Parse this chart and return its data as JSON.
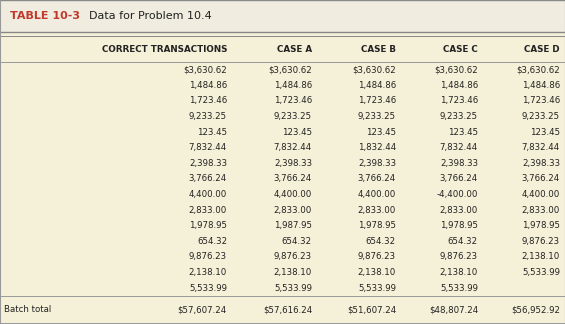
{
  "title_label": "TABLE 10-3",
  "title_text": "  Data for Problem 10.4",
  "table_bg": "#f5f0d8",
  "title_bg": "#f0ece0",
  "border_color": "#999999",
  "title_border_color": "#888888",
  "text_color": "#222222",
  "red_color": "#c0392b",
  "col_headers": [
    "CORRECT TRANSACTIONS",
    "CASE A",
    "CASE B",
    "CASE C",
    "CASE D"
  ],
  "rows": [
    [
      "$3,630.62",
      "$3,630.62",
      "$3,630.62",
      "$3,630.62",
      "$3,630.62"
    ],
    [
      "1,484.86",
      "1,484.86",
      "1,484.86",
      "1,484.86",
      "1,484.86"
    ],
    [
      "1,723.46",
      "1,723.46",
      "1,723.46",
      "1,723.46",
      "1,723.46"
    ],
    [
      "9,233.25",
      "9,233.25",
      "9,233.25",
      "9,233.25",
      "9,233.25"
    ],
    [
      "123.45",
      "123.45",
      "123.45",
      "123.45",
      "123.45"
    ],
    [
      "7,832.44",
      "7,832.44",
      "1,832.44",
      "7,832.44",
      "7,832.44"
    ],
    [
      "2,398.33",
      "2,398.33",
      "2,398.33",
      "2,398.33",
      "2,398.33"
    ],
    [
      "3,766.24",
      "3,766.24",
      "3,766.24",
      "3,766.24",
      "3,766.24"
    ],
    [
      "4,400.00",
      "4,400.00",
      "4,400.00",
      "-4,400.00",
      "4,400.00"
    ],
    [
      "2,833.00",
      "2,833.00",
      "2,833.00",
      "2,833.00",
      "2,833.00"
    ],
    [
      "1,978.95",
      "1,987.95",
      "1,978.95",
      "1,978.95",
      "1,978.95"
    ],
    [
      "654.32",
      "654.32",
      "654.32",
      "654.32",
      "9,876.23"
    ],
    [
      "9,876.23",
      "9,876.23",
      "9,876.23",
      "9,876.23",
      "2,138.10"
    ],
    [
      "2,138.10",
      "2,138.10",
      "2,138.10",
      "2,138.10",
      "5,533.99"
    ],
    [
      "5,533.99",
      "5,533.99",
      "5,533.99",
      "5,533.99",
      ""
    ]
  ],
  "batch_label": "Batch total",
  "batch_row": [
    "$57,607.24",
    "$57,616.24",
    "$51,607.24",
    "$48,807.24",
    "$56,952.92"
  ],
  "figsize": [
    5.65,
    3.24
  ],
  "dpi": 100
}
